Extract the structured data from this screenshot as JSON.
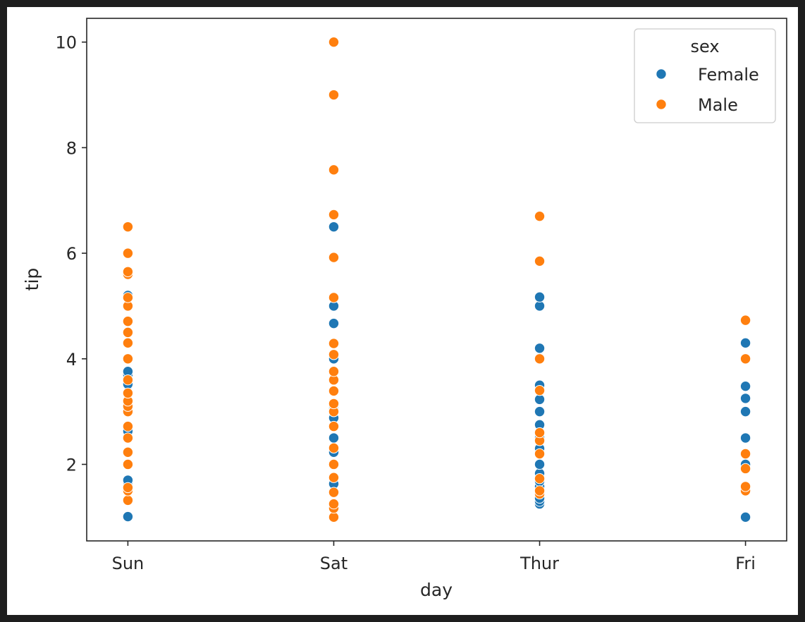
{
  "chart_data": {
    "type": "scatter",
    "title": "",
    "xlabel": "day",
    "ylabel": "tip",
    "categories": [
      "Sun",
      "Sat",
      "Thur",
      "Fri"
    ],
    "ylim": [
      0.55,
      10.45
    ],
    "yticks": [
      2,
      4,
      6,
      8,
      10
    ],
    "grid": false,
    "legend": {
      "title": "sex",
      "placement": "top-right"
    },
    "series": [
      {
        "name": "Female",
        "color": "#1f77b4",
        "points": [
          [
            "Sun",
            1.01
          ],
          [
            "Sun",
            1.66
          ],
          [
            "Sun",
            1.7
          ],
          [
            "Sun",
            2.6
          ],
          [
            "Sun",
            2.63
          ],
          [
            "Sun",
            3.5
          ],
          [
            "Sun",
            3.52
          ],
          [
            "Sun",
            3.7
          ],
          [
            "Sun",
            3.76
          ],
          [
            "Sun",
            5.2
          ],
          [
            "Sat",
            1.63
          ],
          [
            "Sat",
            2.23
          ],
          [
            "Sat",
            2.5
          ],
          [
            "Sat",
            2.88
          ],
          [
            "Sat",
            3.0
          ],
          [
            "Sat",
            3.07
          ],
          [
            "Sat",
            3.12
          ],
          [
            "Sat",
            4.0
          ],
          [
            "Sat",
            4.67
          ],
          [
            "Sat",
            5.0
          ],
          [
            "Sat",
            6.5
          ],
          [
            "Thur",
            1.25
          ],
          [
            "Thur",
            1.3
          ],
          [
            "Thur",
            1.36
          ],
          [
            "Thur",
            1.58
          ],
          [
            "Thur",
            1.68
          ],
          [
            "Thur",
            1.83
          ],
          [
            "Thur",
            2.0
          ],
          [
            "Thur",
            2.3
          ],
          [
            "Thur",
            2.5
          ],
          [
            "Thur",
            2.75
          ],
          [
            "Thur",
            3.0
          ],
          [
            "Thur",
            3.23
          ],
          [
            "Thur",
            3.48
          ],
          [
            "Thur",
            3.5
          ],
          [
            "Thur",
            4.2
          ],
          [
            "Thur",
            5.0
          ],
          [
            "Thur",
            5.17
          ],
          [
            "Fri",
            1.0
          ],
          [
            "Fri",
            2.0
          ],
          [
            "Fri",
            2.5
          ],
          [
            "Fri",
            3.0
          ],
          [
            "Fri",
            3.25
          ],
          [
            "Fri",
            3.48
          ],
          [
            "Fri",
            4.3
          ]
        ]
      },
      {
        "name": "Male",
        "color": "#ff7f0e",
        "points": [
          [
            "Sun",
            1.32
          ],
          [
            "Sun",
            1.5
          ],
          [
            "Sun",
            1.56
          ],
          [
            "Sun",
            2.0
          ],
          [
            "Sun",
            2.23
          ],
          [
            "Sun",
            2.5
          ],
          [
            "Sun",
            2.72
          ],
          [
            "Sun",
            3.0
          ],
          [
            "Sun",
            3.1
          ],
          [
            "Sun",
            3.2
          ],
          [
            "Sun",
            3.35
          ],
          [
            "Sun",
            3.6
          ],
          [
            "Sun",
            4.0
          ],
          [
            "Sun",
            4.3
          ],
          [
            "Sun",
            4.5
          ],
          [
            "Sun",
            4.71
          ],
          [
            "Sun",
            5.0
          ],
          [
            "Sun",
            5.16
          ],
          [
            "Sun",
            5.6
          ],
          [
            "Sun",
            5.65
          ],
          [
            "Sun",
            6.0
          ],
          [
            "Sun",
            6.5
          ],
          [
            "Sat",
            1.0
          ],
          [
            "Sat",
            1.17
          ],
          [
            "Sat",
            1.25
          ],
          [
            "Sat",
            1.47
          ],
          [
            "Sat",
            1.75
          ],
          [
            "Sat",
            2.0
          ],
          [
            "Sat",
            2.31
          ],
          [
            "Sat",
            2.72
          ],
          [
            "Sat",
            3.0
          ],
          [
            "Sat",
            3.15
          ],
          [
            "Sat",
            3.39
          ],
          [
            "Sat",
            3.6
          ],
          [
            "Sat",
            3.76
          ],
          [
            "Sat",
            4.08
          ],
          [
            "Sat",
            4.29
          ],
          [
            "Sat",
            5.16
          ],
          [
            "Sat",
            5.92
          ],
          [
            "Sat",
            6.73
          ],
          [
            "Sat",
            7.58
          ],
          [
            "Sat",
            9.0
          ],
          [
            "Sat",
            10.0
          ],
          [
            "Thur",
            1.44
          ],
          [
            "Thur",
            1.5
          ],
          [
            "Thur",
            1.73
          ],
          [
            "Thur",
            2.2
          ],
          [
            "Thur",
            2.45
          ],
          [
            "Thur",
            2.6
          ],
          [
            "Thur",
            3.4
          ],
          [
            "Thur",
            4.0
          ],
          [
            "Thur",
            5.85
          ],
          [
            "Thur",
            6.7
          ],
          [
            "Fri",
            1.5
          ],
          [
            "Fri",
            1.58
          ],
          [
            "Fri",
            1.92
          ],
          [
            "Fri",
            2.2
          ],
          [
            "Fri",
            4.0
          ],
          [
            "Fri",
            4.73
          ]
        ]
      }
    ]
  }
}
